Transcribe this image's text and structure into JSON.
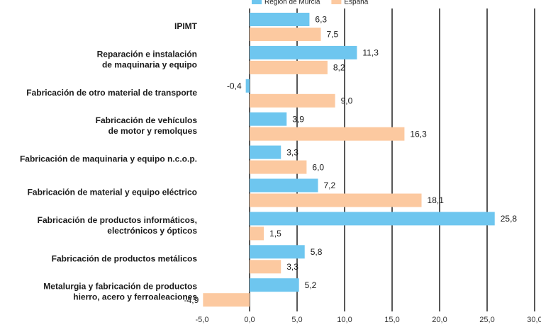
{
  "chart_data": {
    "type": "hbar",
    "categories": [
      [
        "IPIMT"
      ],
      [
        "Reparación e instalación",
        "de maquinaria y equipo"
      ],
      [
        "Fabricación de otro material de transporte"
      ],
      [
        "Fabricación de vehículos",
        "de motor y remolques"
      ],
      [
        "Fabricación de maquinaria y equipo n.c.o.p."
      ],
      [
        "Fabricación de material y equipo eléctrico"
      ],
      [
        "Fabricación de productos informáticos,",
        "electrónicos y ópticos"
      ],
      [
        "Fabricación de productos metálicos"
      ],
      [
        "Metalurgia y fabricación de productos",
        "hierro, acero y ferroaleaciones"
      ]
    ],
    "series": [
      {
        "name": "Región de Murcia",
        "color": "#6ec6ef",
        "values": [
          6.3,
          11.3,
          -0.4,
          3.9,
          3.3,
          7.2,
          25.8,
          5.8,
          5.2
        ],
        "value_labels": [
          "6,3",
          "11,3",
          "-0,4",
          "3,9",
          "3,3",
          "7,2",
          "25,8",
          "5,8",
          "5,2"
        ]
      },
      {
        "name": "España",
        "color": "#fcc9a0",
        "values": [
          7.5,
          8.2,
          9.0,
          16.3,
          6.0,
          18.1,
          1.5,
          3.3,
          -4.9
        ],
        "value_labels": [
          "7,5",
          "8,2",
          "9,0",
          "16,3",
          "6,0",
          "18,1",
          "1,5",
          "3,3",
          "-4,9"
        ]
      }
    ],
    "xlim": [
      -5,
      30
    ],
    "xticks": [
      {
        "value": -5,
        "label": "-5,0"
      },
      {
        "value": 0,
        "label": "0,0"
      },
      {
        "value": 5,
        "label": "5,0"
      },
      {
        "value": 10,
        "label": "10,0"
      },
      {
        "value": 15,
        "label": "15,0"
      },
      {
        "value": 20,
        "label": "20,0"
      },
      {
        "value": 25,
        "label": "25,0"
      },
      {
        "value": 30,
        "label": "30,0"
      }
    ],
    "grid": true,
    "legend": "top"
  }
}
